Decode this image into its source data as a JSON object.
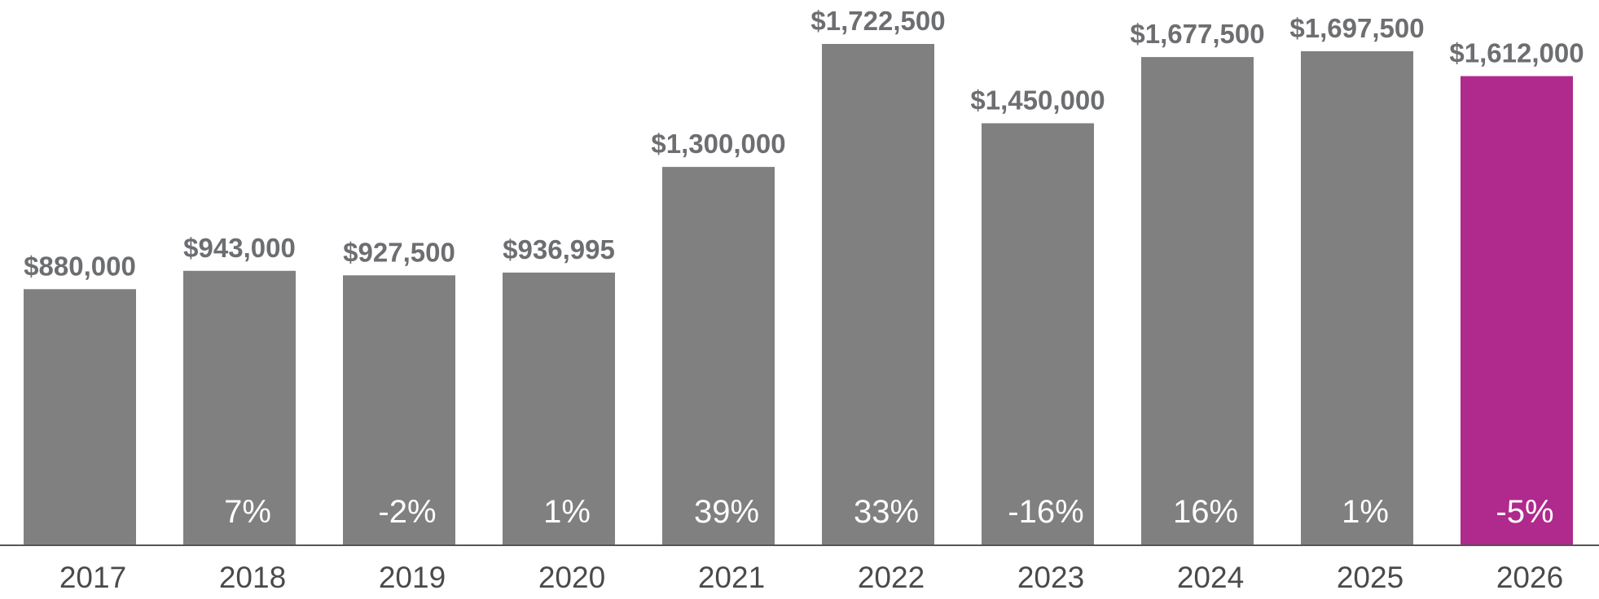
{
  "chart_data": {
    "type": "bar",
    "title": "",
    "xlabel": "",
    "ylabel": "",
    "categories": [
      "2017",
      "2018",
      "2019",
      "2020",
      "2021",
      "2022",
      "2023",
      "2024",
      "2025",
      "2026"
    ],
    "values": [
      880000,
      943000,
      927500,
      936995,
      1300000,
      1722500,
      1450000,
      1677500,
      1697500,
      1612000
    ],
    "value_labels": [
      "$880,000",
      "$943,000",
      "$927,500",
      "$936,995",
      "$1,300,000",
      "$1,722,500",
      "$1,450,000",
      "$1,677,500",
      "$1,697,500",
      "$1,612,000"
    ],
    "change_labels": [
      "",
      "7%",
      "-2%",
      "1%",
      "39%",
      "33%",
      "-16%",
      "16%",
      "1%",
      "-5%"
    ],
    "ylim": [
      0,
      1722500
    ],
    "grid": false,
    "legend": "none",
    "colors": {
      "bar": "#808080",
      "highlight": "#b0298c",
      "value_text": "#6d6e71",
      "change_text": "#ffffff",
      "year_text": "#4a4a4a",
      "baseline": "#555555"
    },
    "highlight_category": "2026"
  }
}
